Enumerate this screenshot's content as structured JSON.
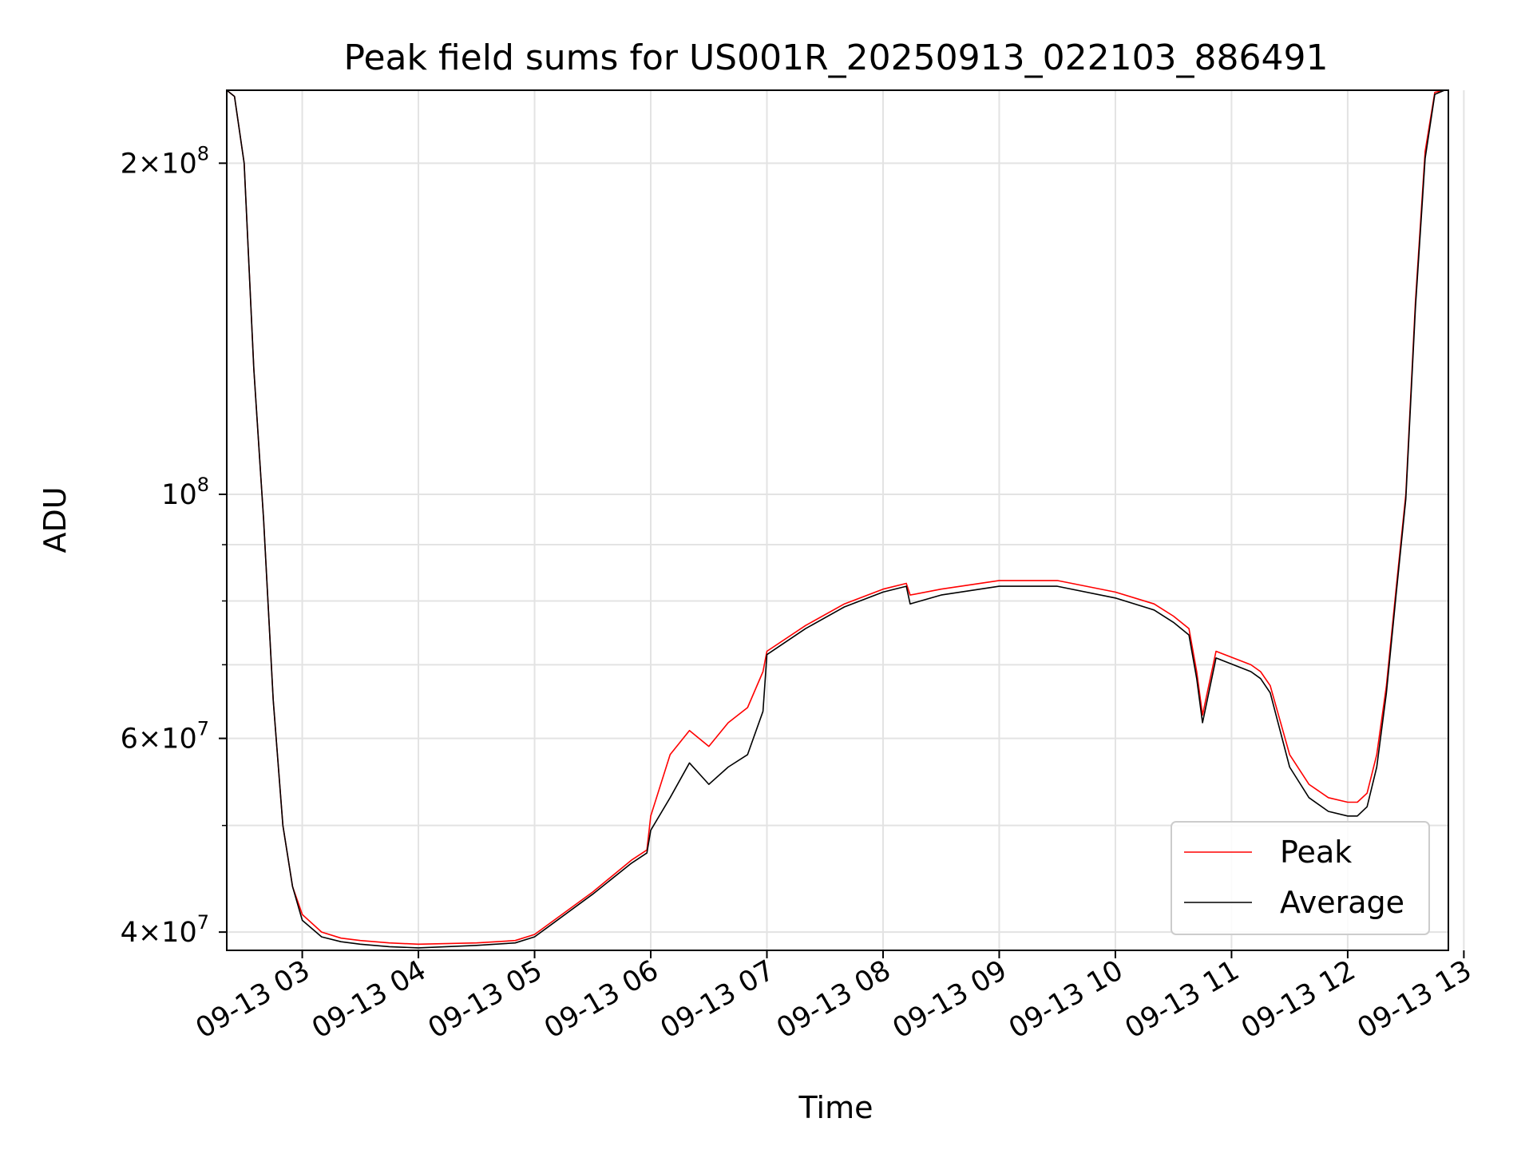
{
  "chart_data": {
    "type": "line",
    "title": "Peak field sums for US001R_20250913_022103_886491",
    "xlabel": "Time",
    "ylabel": "ADU",
    "yscale": "log",
    "ylim": [
      38500000,
      233000000
    ],
    "xlim": [
      "09-13 02:21",
      "09-13 12:52"
    ],
    "grid": true,
    "legend": {
      "placement": "lower right",
      "entries": [
        "Peak",
        "Average"
      ]
    },
    "x_ticks": [
      "09-13 03",
      "09-13 04",
      "09-13 05",
      "09-13 06",
      "09-13 07",
      "09-13 08",
      "09-13 09",
      "09-13 10",
      "09-13 11",
      "09-13 12",
      "09-13 13"
    ],
    "y_ticks": [
      {
        "value": 40000000,
        "base": "4",
        "mult": "×",
        "pow": "10",
        "exp": "7"
      },
      {
        "value": 60000000,
        "base": "6",
        "mult": "×",
        "pow": "10",
        "exp": "7"
      },
      {
        "value": 100000000,
        "base": "",
        "mult": "",
        "pow": "10",
        "exp": "8"
      },
      {
        "value": 200000000,
        "base": "2",
        "mult": "×",
        "pow": "10",
        "exp": "8"
      }
    ],
    "y_minor_ticks": [
      50000000,
      70000000,
      80000000,
      90000000
    ],
    "x": [
      "09-13 02:21",
      "09-13 02:25",
      "09-13 02:30",
      "09-13 02:35",
      "09-13 02:40",
      "09-13 02:45",
      "09-13 02:50",
      "09-13 02:55",
      "09-13 03:00",
      "09-13 03:10",
      "09-13 03:20",
      "09-13 03:30",
      "09-13 03:45",
      "09-13 04:00",
      "09-13 04:30",
      "09-13 04:50",
      "09-13 05:00",
      "09-13 05:10",
      "09-13 05:30",
      "09-13 05:50",
      "09-13 05:58",
      "09-13 06:00",
      "09-13 06:10",
      "09-13 06:20",
      "09-13 06:30",
      "09-13 06:40",
      "09-13 06:50",
      "09-13 06:58",
      "09-13 07:00",
      "09-13 07:20",
      "09-13 07:40",
      "09-13 08:00",
      "09-13 08:12",
      "09-13 08:14",
      "09-13 08:30",
      "09-13 09:00",
      "09-13 09:30",
      "09-13 10:00",
      "09-13 10:20",
      "09-13 10:30",
      "09-13 10:38",
      "09-13 10:42",
      "09-13 10:45",
      "09-13 10:52",
      "09-13 11:10",
      "09-13 11:15",
      "09-13 11:20",
      "09-13 11:30",
      "09-13 11:40",
      "09-13 11:50",
      "09-13 12:00",
      "09-13 12:05",
      "09-13 12:10",
      "09-13 12:15",
      "09-13 12:20",
      "09-13 12:25",
      "09-13 12:30",
      "09-13 12:35",
      "09-13 12:40",
      "09-13 12:45",
      "09-13 12:50",
      "09-13 12:52"
    ],
    "series": [
      {
        "name": "Peak",
        "color": "#ff0000",
        "values": [
          233000000,
          230000000,
          200000000,
          130000000,
          95000000,
          65000000,
          50000000,
          44000000,
          41500000,
          40000000,
          39500000,
          39300000,
          39100000,
          39000000,
          39100000,
          39300000,
          39800000,
          41000000,
          43500000,
          46500000,
          47500000,
          51000000,
          58000000,
          61000000,
          59000000,
          62000000,
          64000000,
          69000000,
          72000000,
          76000000,
          79500000,
          82000000,
          83000000,
          81000000,
          82000000,
          83500000,
          83500000,
          81500000,
          79500000,
          77500000,
          75500000,
          69000000,
          63000000,
          72000000,
          70000000,
          69000000,
          67000000,
          58000000,
          54500000,
          53000000,
          52500000,
          52500000,
          53500000,
          58000000,
          67000000,
          82000000,
          100000000,
          150000000,
          205000000,
          232000000,
          233000000,
          233000000
        ]
      },
      {
        "name": "Average",
        "color": "#000000",
        "values": [
          233000000,
          230000000,
          200000000,
          130000000,
          95000000,
          65000000,
          50000000,
          44000000,
          41000000,
          39600000,
          39200000,
          39000000,
          38800000,
          38700000,
          38900000,
          39100000,
          39600000,
          40800000,
          43300000,
          46200000,
          47200000,
          49500000,
          53000000,
          57000000,
          54500000,
          56500000,
          58000000,
          63500000,
          71500000,
          75500000,
          79000000,
          81500000,
          82500000,
          79500000,
          81000000,
          82500000,
          82500000,
          80500000,
          78500000,
          76500000,
          74500000,
          68000000,
          62000000,
          71000000,
          69000000,
          68000000,
          66000000,
          56500000,
          53000000,
          51500000,
          51000000,
          51000000,
          52000000,
          56500000,
          66000000,
          81000000,
          99000000,
          148000000,
          202000000,
          231000000,
          233000000,
          233000000
        ]
      }
    ]
  }
}
